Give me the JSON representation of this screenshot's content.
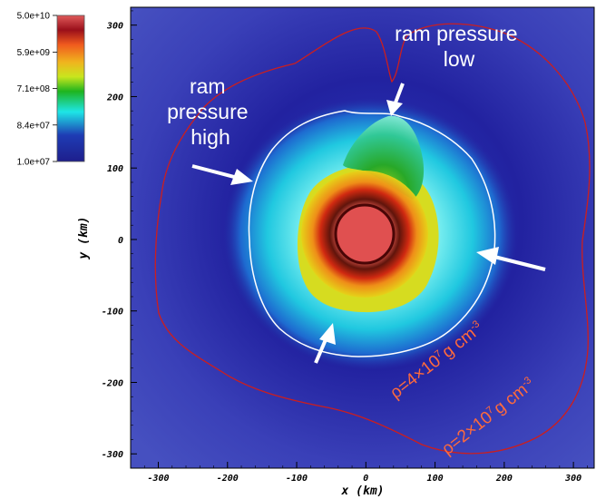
{
  "chart_data": {
    "type": "heatmap",
    "title": "",
    "xlabel": "x  (km)",
    "ylabel": "y  (km)",
    "xlim": [
      -340,
      330
    ],
    "ylim": [
      -320,
      325
    ],
    "x_ticks": [
      -300,
      -200,
      -100,
      0,
      100,
      200,
      300
    ],
    "y_ticks": [
      -300,
      -200,
      -100,
      0,
      100,
      200,
      300
    ],
    "colorbar": {
      "scale": "log",
      "range": [
        10000000.0,
        50000000000.0
      ],
      "tick_labels": [
        "5.0e+10",
        "5.9e+09",
        "7.1e+08",
        "8.4e+07",
        "1.0e+07"
      ]
    },
    "annotations": [
      {
        "id": "ram-high",
        "lines": [
          "ram",
          "pressure",
          "high"
        ]
      },
      {
        "id": "ram-low",
        "lines": [
          "ram pressure",
          "low"
        ]
      }
    ],
    "contours": [
      {
        "id": "rho-4e7",
        "label_base": "ρ=4×10",
        "label_exp": "7",
        "label_unit": "g cm",
        "label_unit_exp": "-3",
        "color": "#ffffff"
      },
      {
        "id": "rho-2e7",
        "label_base": "ρ=2×10",
        "label_exp": "7",
        "label_unit": "g cm",
        "label_unit_exp": "-3",
        "color": "#cc1e1e"
      }
    ],
    "colors": {
      "background": "#3b3fb8",
      "outer_blue": "#2c2fa8",
      "cyan_shell": "#22d6e6",
      "green_zone": "#2ab02a",
      "yellow_zone": "#d8dc18",
      "orange_ring": "#f08a10",
      "dark_ring": "#6b0e0e",
      "core": "#e05050"
    }
  }
}
